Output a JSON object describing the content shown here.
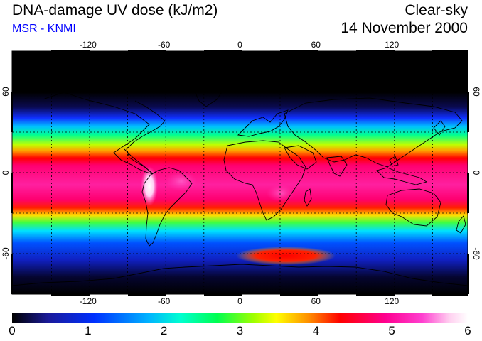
{
  "header": {
    "title": "DNA-damage UV dose (kJ/m2)",
    "source": "MSR - KNMI",
    "sky_condition": "Clear-sky",
    "date": "14 November 2000"
  },
  "map": {
    "lon_ticks": [
      "-120",
      "-60",
      "0",
      "60",
      "120"
    ],
    "lat_ticks": [
      "60",
      "0",
      "-60"
    ],
    "lon_values": [
      -120,
      -60,
      0,
      60,
      120
    ],
    "lat_values": [
      60,
      0,
      -60
    ],
    "lon_range": [
      -180,
      180
    ],
    "lat_range": [
      -90,
      90
    ],
    "grid_interval_deg": 30
  },
  "colorbar": {
    "labels": [
      "0",
      "1",
      "2",
      "3",
      "4",
      "5",
      "6"
    ],
    "range": [
      0,
      6
    ],
    "colors": [
      "#000000",
      "#1a1a9a",
      "#0030ff",
      "#00b4ff",
      "#00ffd0",
      "#00ff50",
      "#a0ff00",
      "#ffff00",
      "#ff9000",
      "#ff0000",
      "#ff0090",
      "#ff40d0",
      "#ffd0f0",
      "#ffffff"
    ]
  }
}
